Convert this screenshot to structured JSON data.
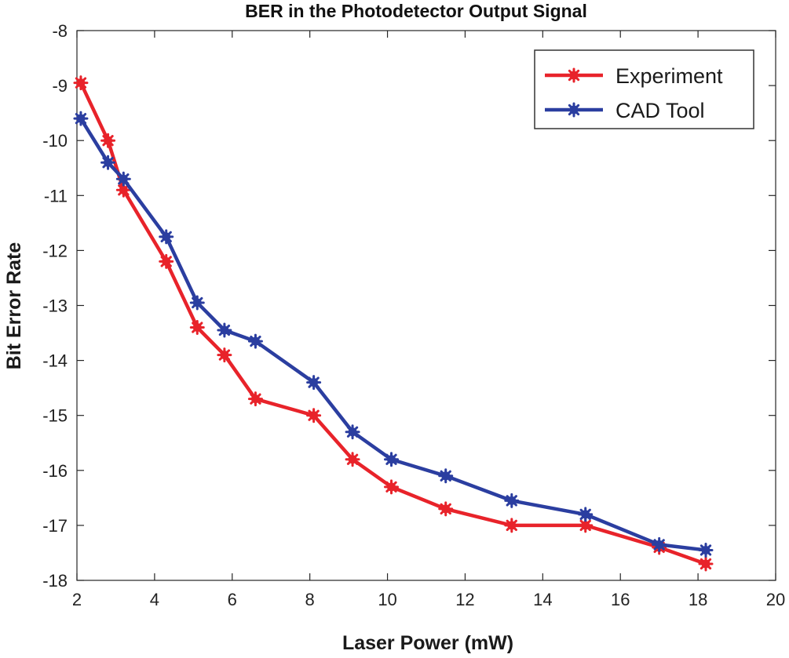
{
  "chart_data": {
    "type": "line",
    "title": "BER in the Photodetector Output Signal",
    "xlabel": "Laser Power (mW)",
    "ylabel": "Bit Error Rate",
    "xlim": [
      2,
      20
    ],
    "ylim": [
      -18,
      -8
    ],
    "xticks": [
      2,
      4,
      6,
      8,
      10,
      12,
      14,
      16,
      18,
      20
    ],
    "yticks": [
      -8,
      -9,
      -10,
      -11,
      -12,
      -13,
      -14,
      -15,
      -16,
      -17,
      -18
    ],
    "legend_position": "top-right",
    "grid": false,
    "series": [
      {
        "name": "Experiment",
        "color": "#e8232a",
        "marker": "asterisk-filled",
        "x": [
          2.1,
          2.8,
          3.2,
          4.3,
          5.1,
          5.8,
          6.6,
          8.1,
          9.1,
          10.1,
          11.5,
          13.2,
          15.1,
          17.0,
          18.2
        ],
        "y": [
          -8.95,
          -10.0,
          -10.9,
          -12.2,
          -13.4,
          -13.9,
          -14.7,
          -15.0,
          -15.8,
          -16.3,
          -16.7,
          -17.0,
          -17.0,
          -17.4,
          -17.7
        ]
      },
      {
        "name": "CAD Tool",
        "color": "#2b3ea0",
        "marker": "asterisk-filled",
        "x": [
          2.1,
          2.8,
          3.2,
          4.3,
          5.1,
          5.8,
          6.6,
          8.1,
          9.1,
          10.1,
          11.5,
          13.2,
          15.1,
          17.0,
          18.2
        ],
        "y": [
          -9.6,
          -10.4,
          -10.7,
          -11.75,
          -12.95,
          -13.45,
          -13.65,
          -14.4,
          -15.3,
          -15.8,
          -16.1,
          -16.55,
          -16.8,
          -17.35,
          -17.45
        ]
      }
    ]
  }
}
